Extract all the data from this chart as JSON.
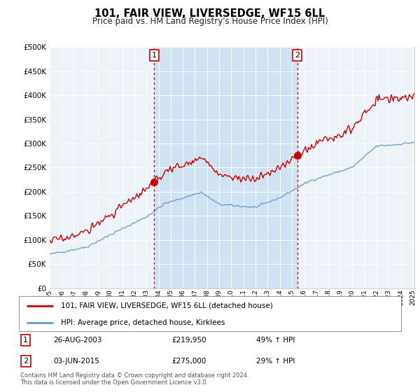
{
  "title": "101, FAIR VIEW, LIVERSEDGE, WF15 6LL",
  "subtitle": "Price paid vs. HM Land Registry's House Price Index (HPI)",
  "legend_line1": "101, FAIR VIEW, LIVERSEDGE, WF15 6LL (detached house)",
  "legend_line2": "HPI: Average price, detached house, Kirklees",
  "footnote": "Contains HM Land Registry data © Crown copyright and database right 2024.\nThis data is licensed under the Open Government Licence v3.0.",
  "line1_color": "#cc0000",
  "line2_color": "#6699cc",
  "shade_color": "#dce8f5",
  "vline_color": "#cc0000",
  "annotation_box_color": "#cc0000",
  "ylim": [
    0,
    500000
  ],
  "yticks": [
    0,
    50000,
    100000,
    150000,
    200000,
    250000,
    300000,
    350000,
    400000,
    450000,
    500000
  ],
  "sale1_t": 2003.646,
  "sale1_price": 219950,
  "sale2_t": 2015.458,
  "sale2_price": 275000,
  "xstart": 1995.0,
  "xend": 2025.1
}
